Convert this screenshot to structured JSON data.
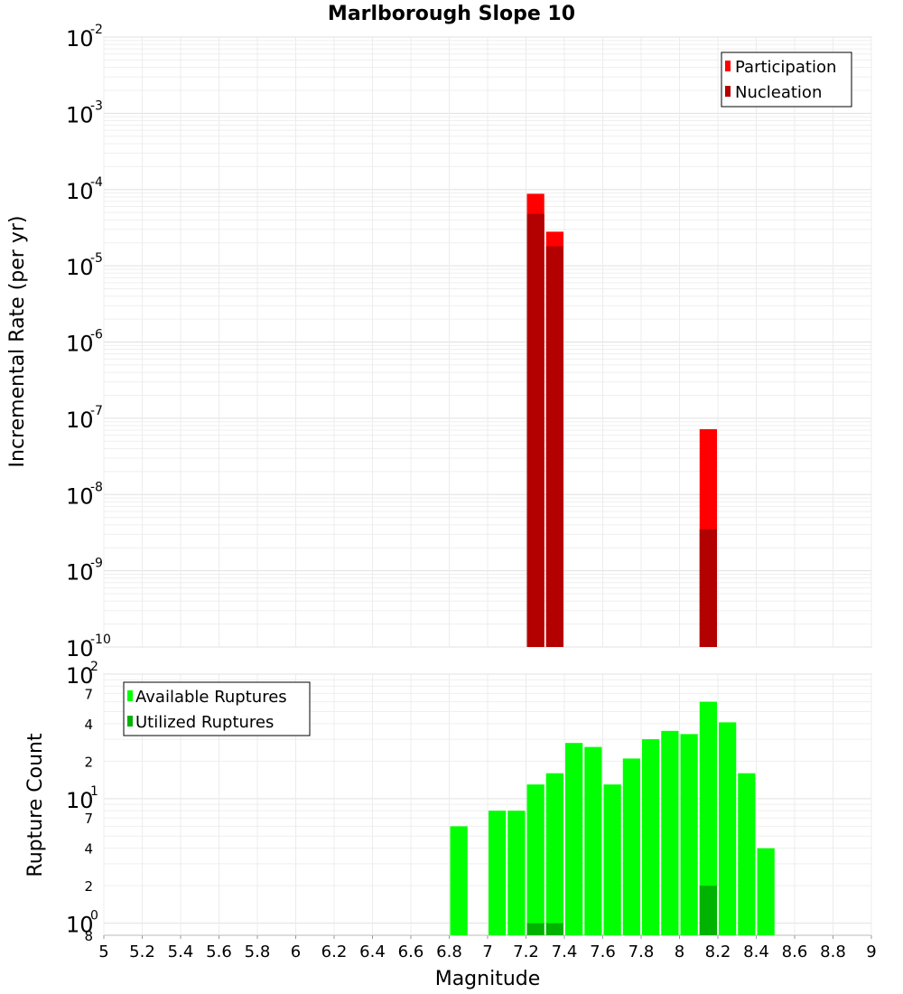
{
  "chart_data": [
    {
      "type": "bar",
      "title": "Marlborough Slope 10",
      "xlabel": "",
      "ylabel": "Incremental Rate (per yr)",
      "yscale": "log",
      "ylim_exp": [
        -10,
        -2
      ],
      "xlim": [
        5,
        9
      ],
      "bin_width": 0.1,
      "legend_position": "top-right",
      "colors": {
        "Participation": "#ff0000",
        "Nucleation": "#b30000"
      },
      "y_ticks": [
        {
          "base": "10",
          "exp": "-2"
        },
        {
          "base": "10",
          "exp": "-3"
        },
        {
          "base": "10",
          "exp": "-4"
        },
        {
          "base": "10",
          "exp": "-5"
        },
        {
          "base": "10",
          "exp": "-6"
        },
        {
          "base": "10",
          "exp": "-7"
        },
        {
          "base": "10",
          "exp": "-8"
        },
        {
          "base": "10",
          "exp": "-9"
        },
        {
          "base": "10",
          "exp": "-10"
        }
      ],
      "series": [
        {
          "name": "Participation",
          "x": [
            7.25,
            7.35,
            8.15
          ],
          "values": [
            8.8e-05,
            2.8e-05,
            7.2e-08
          ]
        },
        {
          "name": "Nucleation",
          "x": [
            7.25,
            7.35,
            8.15
          ],
          "values": [
            4.8e-05,
            1.8e-05,
            3.5e-09
          ]
        }
      ]
    },
    {
      "type": "bar",
      "title": "",
      "xlabel": "Magnitude",
      "ylabel": "Rupture Count",
      "yscale": "log",
      "ylim": [
        0.8,
        100
      ],
      "xlim": [
        5,
        9
      ],
      "bin_width": 0.1,
      "legend_position": "top-left",
      "colors": {
        "Available Ruptures": "#00ff00",
        "Utilized Ruptures": "#00b300"
      },
      "y_ticks": [
        {
          "base": "10",
          "exp": "2"
        },
        {
          "base": "10",
          "exp": "1"
        },
        {
          "base": "10",
          "exp": "0"
        }
      ],
      "y_minor_ticks": [
        {
          "value": 70,
          "label": "7"
        },
        {
          "value": 40,
          "label": "4"
        },
        {
          "value": 20,
          "label": "2"
        },
        {
          "value": 7,
          "label": "7"
        },
        {
          "value": 4,
          "label": "4"
        },
        {
          "value": 2,
          "label": "2"
        },
        {
          "value": 0.8,
          "label": "8"
        }
      ],
      "x_tick_labels": [
        "5",
        "5.2",
        "5.4",
        "5.6",
        "5.8",
        "6",
        "6.2",
        "6.4",
        "6.6",
        "6.8",
        "7",
        "7.2",
        "7.4",
        "7.6",
        "7.8",
        "8",
        "8.2",
        "8.4",
        "8.6",
        "8.8",
        "9"
      ],
      "series": [
        {
          "name": "Available Ruptures",
          "x": [
            6.85,
            7.05,
            7.15,
            7.25,
            7.35,
            7.45,
            7.55,
            7.65,
            7.75,
            7.85,
            7.95,
            8.05,
            8.15,
            8.25,
            8.35,
            8.45
          ],
          "values": [
            6,
            8,
            8,
            13,
            16,
            28,
            26,
            13,
            21,
            30,
            35,
            33,
            60,
            41,
            16,
            4
          ]
        },
        {
          "name": "Utilized Ruptures",
          "x": [
            7.25,
            7.35,
            8.15
          ],
          "values": [
            1,
            1,
            2
          ]
        }
      ]
    }
  ]
}
